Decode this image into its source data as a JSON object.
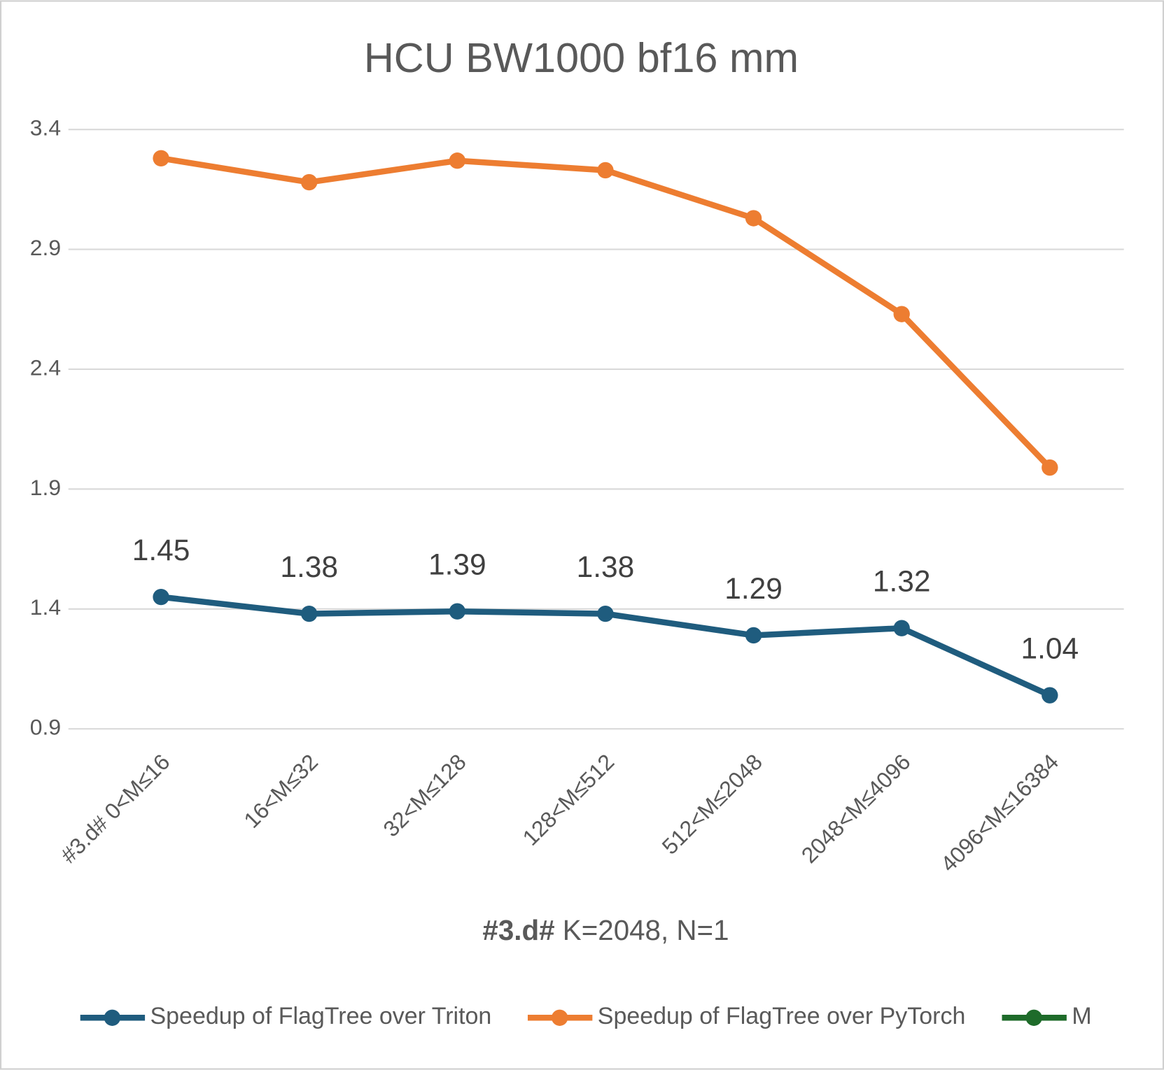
{
  "chart_data": {
    "type": "line",
    "title": "HCU BW1000 bf16 mm",
    "xlabel": [
      "#3.d#",
      "K=2048, N=1"
    ],
    "categories": [
      "#3.d# 0<M≤16",
      "16<M≤32",
      "32<M≤128",
      "128<M≤512",
      "512<M≤2048",
      "2048<M≤4096",
      "4096<M≤16384"
    ],
    "series": [
      {
        "name": "Speedup of FlagTree over Triton",
        "color": "#1f5c7e",
        "values": [
          1.45,
          1.38,
          1.39,
          1.38,
          1.29,
          1.32,
          1.04
        ],
        "data_labels": true
      },
      {
        "name": "Speedup of FlagTree over PyTorch",
        "color": "#ed7d31",
        "values": [
          3.28,
          3.18,
          3.27,
          3.23,
          3.03,
          2.63,
          1.99
        ]
      },
      {
        "name": "M",
        "color": "#1e6b2a",
        "values": [
          null,
          null,
          null,
          null,
          null,
          null,
          null
        ]
      }
    ],
    "ylim": [
      0.9,
      3.4
    ],
    "yticks": [
      0.9,
      1.4,
      1.9,
      2.4,
      2.9,
      3.4
    ],
    "grid": true,
    "legend": "bottom"
  }
}
